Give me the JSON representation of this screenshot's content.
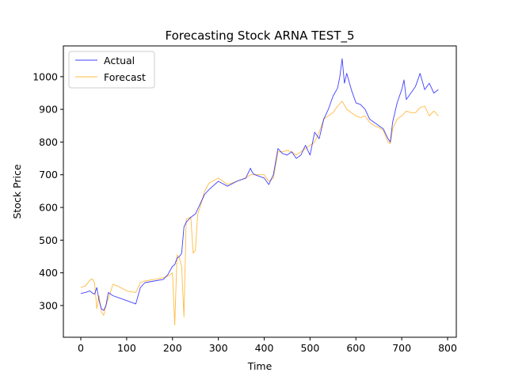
{
  "chart_data": {
    "type": "line",
    "title": "Forecasting Stock ARNA TEST_5",
    "xlabel": "Time",
    "ylabel": "Stock Price",
    "xlim": [
      -38,
      819
    ],
    "ylim": [
      203,
      1094
    ],
    "xticks": [
      0,
      100,
      200,
      300,
      400,
      500,
      600,
      700,
      800
    ],
    "yticks": [
      300,
      400,
      500,
      600,
      700,
      800,
      900,
      1000
    ],
    "grid": false,
    "legend_position": "upper-left",
    "series": [
      {
        "name": "Actual",
        "color": "#0000ff",
        "x": [
          0,
          10,
          20,
          25,
          30,
          35,
          40,
          45,
          50,
          55,
          60,
          70,
          80,
          100,
          120,
          130,
          140,
          160,
          180,
          190,
          200,
          205,
          210,
          215,
          220,
          225,
          230,
          240,
          250,
          260,
          270,
          280,
          300,
          320,
          340,
          360,
          370,
          375,
          380,
          400,
          410,
          420,
          430,
          440,
          450,
          460,
          470,
          480,
          490,
          500,
          510,
          520,
          530,
          540,
          550,
          560,
          565,
          570,
          575,
          580,
          590,
          600,
          610,
          620,
          630,
          640,
          650,
          660,
          670,
          675,
          680,
          690,
          700,
          705,
          710,
          720,
          730,
          740,
          750,
          760,
          770,
          780
        ],
        "y": [
          337,
          340,
          345,
          338,
          335,
          355,
          315,
          290,
          285,
          300,
          340,
          330,
          325,
          315,
          305,
          355,
          370,
          375,
          380,
          395,
          420,
          425,
          445,
          450,
          460,
          540,
          555,
          570,
          580,
          610,
          640,
          655,
          680,
          665,
          680,
          690,
          720,
          705,
          700,
          690,
          670,
          700,
          780,
          765,
          760,
          770,
          750,
          760,
          790,
          760,
          830,
          810,
          870,
          900,
          940,
          965,
          1000,
          1055,
          980,
          1010,
          960,
          920,
          915,
          900,
          870,
          860,
          850,
          840,
          810,
          800,
          860,
          920,
          960,
          990,
          930,
          950,
          970,
          1010,
          960,
          980,
          950,
          960
        ]
      },
      {
        "name": "Forecast",
        "color": "#ffa500",
        "x": [
          0,
          10,
          20,
          25,
          30,
          35,
          40,
          45,
          50,
          55,
          60,
          70,
          80,
          100,
          120,
          130,
          140,
          160,
          180,
          190,
          200,
          205,
          210,
          215,
          220,
          225,
          230,
          240,
          245,
          250,
          255,
          260,
          270,
          280,
          300,
          320,
          340,
          360,
          370,
          375,
          380,
          400,
          410,
          420,
          430,
          440,
          450,
          460,
          470,
          480,
          490,
          500,
          510,
          520,
          530,
          540,
          550,
          560,
          570,
          580,
          590,
          600,
          610,
          620,
          630,
          640,
          650,
          660,
          670,
          675,
          680,
          690,
          700,
          710,
          720,
          730,
          740,
          750,
          760,
          770,
          780
        ],
        "y": [
          355,
          360,
          378,
          382,
          370,
          290,
          330,
          280,
          270,
          300,
          320,
          365,
          360,
          345,
          340,
          370,
          375,
          380,
          385,
          390,
          400,
          240,
          455,
          445,
          420,
          265,
          565,
          570,
          460,
          470,
          580,
          600,
          650,
          675,
          690,
          670,
          680,
          690,
          700,
          700,
          700,
          700,
          680,
          690,
          770,
          770,
          775,
          770,
          760,
          770,
          780,
          790,
          800,
          830,
          870,
          880,
          890,
          910,
          925,
          900,
          890,
          880,
          875,
          880,
          860,
          850,
          845,
          835,
          800,
          795,
          840,
          870,
          880,
          895,
          890,
          890,
          905,
          910,
          880,
          895,
          880
        ]
      }
    ]
  }
}
